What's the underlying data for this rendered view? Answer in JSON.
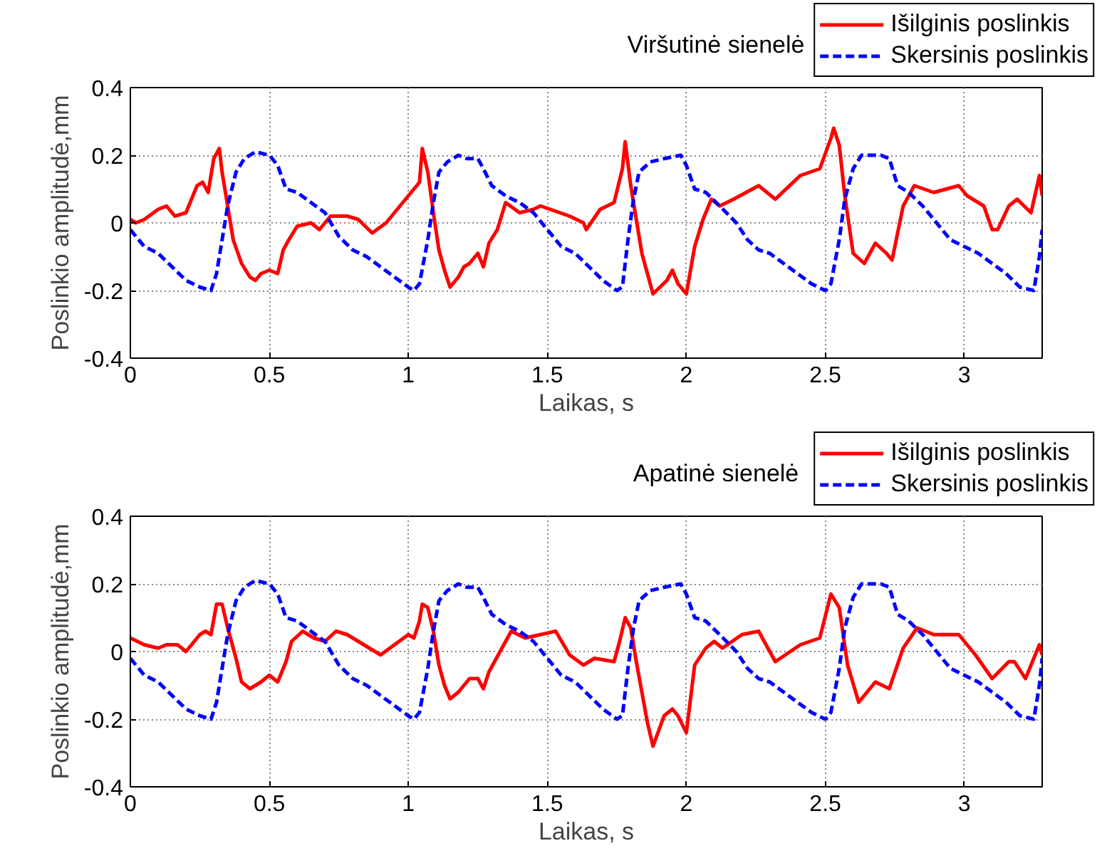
{
  "chart_data": [
    {
      "type": "line",
      "title": "Viršutinė sienelė",
      "xlabel": "Laikas, s",
      "ylabel": "Poslinkio amplitudė,mm",
      "xlim": [
        0,
        3.28
      ],
      "ylim": [
        -0.4,
        0.4
      ],
      "xticks": [
        0,
        0.5,
        1,
        1.5,
        2,
        2.5,
        3
      ],
      "yticks": [
        -0.4,
        -0.2,
        0,
        0.2,
        0.4
      ],
      "grid": true,
      "legend": "top right",
      "series": [
        {
          "name": "Išilginis poslinkis",
          "color": "#ff0000",
          "line_style": "solid",
          "x": [
            0,
            0.02,
            0.05,
            0.1,
            0.13,
            0.16,
            0.2,
            0.22,
            0.24,
            0.26,
            0.28,
            0.3,
            0.32,
            0.33,
            0.35,
            0.37,
            0.4,
            0.43,
            0.45,
            0.47,
            0.5,
            0.53,
            0.55,
            0.57,
            0.6,
            0.65,
            0.68,
            0.72,
            0.78,
            0.82,
            0.87,
            0.92,
            0.97,
            1.0,
            1.02,
            1.04,
            1.05,
            1.07,
            1.09,
            1.11,
            1.13,
            1.15,
            1.18,
            1.2,
            1.22,
            1.25,
            1.27,
            1.29,
            1.32,
            1.35,
            1.4,
            1.45,
            1.475,
            1.58,
            1.63,
            1.64,
            1.69,
            1.74,
            1.77,
            1.78,
            1.8,
            1.84,
            1.88,
            1.93,
            1.95,
            1.97,
            2.0,
            2.03,
            2.06,
            2.09,
            2.12,
            2.17,
            2.26,
            2.32,
            2.41,
            2.48,
            2.52,
            2.53,
            2.55,
            2.57,
            2.6,
            2.64,
            2.68,
            2.72,
            2.74,
            2.78,
            2.82,
            2.89,
            2.98,
            3.01,
            3.07,
            3.1,
            3.12,
            3.16,
            3.19,
            3.24,
            3.27,
            3.28
          ],
          "values": [
            0.01,
            0.0,
            0.01,
            0.04,
            0.05,
            0.02,
            0.03,
            0.07,
            0.11,
            0.12,
            0.09,
            0.19,
            0.22,
            0.15,
            0.05,
            -0.05,
            -0.12,
            -0.16,
            -0.17,
            -0.15,
            -0.14,
            -0.15,
            -0.08,
            -0.05,
            -0.01,
            0.0,
            -0.02,
            0.02,
            0.02,
            0.01,
            -0.03,
            0.0,
            0.05,
            0.08,
            0.1,
            0.12,
            0.22,
            0.15,
            0.03,
            -0.08,
            -0.14,
            -0.19,
            -0.16,
            -0.13,
            -0.12,
            -0.09,
            -0.13,
            -0.06,
            -0.02,
            0.06,
            0.03,
            0.04,
            0.05,
            0.02,
            0.0,
            -0.02,
            0.04,
            0.06,
            0.16,
            0.24,
            0.11,
            -0.09,
            -0.21,
            -0.17,
            -0.14,
            -0.18,
            -0.21,
            -0.07,
            0.01,
            0.07,
            0.05,
            0.07,
            0.11,
            0.07,
            0.14,
            0.16,
            0.25,
            0.28,
            0.23,
            0.08,
            -0.09,
            -0.12,
            -0.06,
            -0.09,
            -0.11,
            0.05,
            0.11,
            0.09,
            0.11,
            0.08,
            0.05,
            -0.02,
            -0.02,
            0.05,
            0.07,
            0.03,
            0.14,
            0.08
          ]
        },
        {
          "name": "Skersinis poslinkis",
          "color": "#0000ff",
          "line_style": "dashed",
          "x": [
            0,
            0.05,
            0.1,
            0.15,
            0.2,
            0.25,
            0.29,
            0.31,
            0.33,
            0.35,
            0.38,
            0.41,
            0.45,
            0.5,
            0.53,
            0.56,
            0.6,
            0.65,
            0.7,
            0.75,
            0.8,
            0.85,
            0.9,
            0.95,
            1.0,
            1.02,
            1.04,
            1.07,
            1.09,
            1.11,
            1.14,
            1.18,
            1.21,
            1.25,
            1.27,
            1.3,
            1.35,
            1.4,
            1.45,
            1.5,
            1.55,
            1.6,
            1.65,
            1.7,
            1.75,
            1.77,
            1.79,
            1.81,
            1.83,
            1.87,
            1.92,
            1.98,
            2.0,
            2.03,
            2.07,
            2.12,
            2.18,
            2.22,
            2.26,
            2.3,
            2.35,
            2.4,
            2.45,
            2.5,
            2.52,
            2.55,
            2.57,
            2.6,
            2.63,
            2.7,
            2.73,
            2.76,
            2.8,
            2.85,
            2.9,
            2.95,
            3.0,
            3.05,
            3.1,
            3.15,
            3.2,
            3.25,
            3.27,
            3.28
          ],
          "values": [
            -0.02,
            -0.07,
            -0.09,
            -0.13,
            -0.17,
            -0.19,
            -0.2,
            -0.15,
            -0.05,
            0.05,
            0.15,
            0.19,
            0.21,
            0.2,
            0.17,
            0.1,
            0.09,
            0.06,
            0.03,
            -0.04,
            -0.08,
            -0.1,
            -0.13,
            -0.16,
            -0.19,
            -0.2,
            -0.18,
            -0.05,
            0.06,
            0.15,
            0.18,
            0.2,
            0.19,
            0.19,
            0.16,
            0.11,
            0.08,
            0.06,
            0.03,
            -0.02,
            -0.07,
            -0.09,
            -0.13,
            -0.17,
            -0.2,
            -0.19,
            -0.05,
            0.07,
            0.15,
            0.18,
            0.19,
            0.2,
            0.17,
            0.1,
            0.09,
            0.05,
            0.0,
            -0.05,
            -0.08,
            -0.09,
            -0.12,
            -0.15,
            -0.18,
            -0.2,
            -0.18,
            -0.05,
            0.07,
            0.16,
            0.2,
            0.2,
            0.19,
            0.11,
            0.09,
            0.05,
            0.0,
            -0.05,
            -0.07,
            -0.09,
            -0.12,
            -0.15,
            -0.19,
            -0.2,
            -0.1,
            -0.02
          ]
        }
      ]
    },
    {
      "type": "line",
      "title": "Apatinė sienelė",
      "xlabel": "Laikas, s",
      "ylabel": "Poslinkio amplitudė,mm",
      "xlim": [
        0,
        3.28
      ],
      "ylim": [
        -0.4,
        0.4
      ],
      "xticks": [
        0,
        0.5,
        1,
        1.5,
        2,
        2.5,
        3
      ],
      "yticks": [
        -0.4,
        -0.2,
        0,
        0.2,
        0.4
      ],
      "grid": true,
      "legend": "top right",
      "series": [
        {
          "name": "Išilginis poslinkis",
          "color": "#ff0000",
          "line_style": "solid",
          "x": [
            0,
            0.05,
            0.1,
            0.13,
            0.17,
            0.2,
            0.22,
            0.25,
            0.27,
            0.29,
            0.31,
            0.33,
            0.35,
            0.38,
            0.4,
            0.43,
            0.47,
            0.5,
            0.53,
            0.56,
            0.58,
            0.62,
            0.66,
            0.7,
            0.74,
            0.78,
            0.84,
            0.9,
            0.95,
            1.0,
            1.02,
            1.04,
            1.05,
            1.07,
            1.09,
            1.11,
            1.13,
            1.15,
            1.18,
            1.22,
            1.25,
            1.27,
            1.29,
            1.33,
            1.37,
            1.42,
            1.475,
            1.53,
            1.58,
            1.63,
            1.67,
            1.74,
            1.76,
            1.78,
            1.8,
            1.82,
            1.86,
            1.88,
            1.92,
            1.95,
            1.97,
            2.0,
            2.03,
            2.07,
            2.1,
            2.13,
            2.2,
            2.26,
            2.32,
            2.41,
            2.48,
            2.52,
            2.55,
            2.58,
            2.62,
            2.68,
            2.73,
            2.78,
            2.83,
            2.89,
            2.98,
            3.04,
            3.1,
            3.16,
            3.18,
            3.22,
            3.27,
            3.28
          ],
          "values": [
            0.04,
            0.02,
            0.01,
            0.02,
            0.02,
            0.0,
            0.02,
            0.05,
            0.06,
            0.05,
            0.14,
            0.14,
            0.07,
            -0.02,
            -0.09,
            -0.11,
            -0.09,
            -0.07,
            -0.09,
            -0.03,
            0.03,
            0.06,
            0.04,
            0.03,
            0.06,
            0.05,
            0.02,
            -0.01,
            0.02,
            0.05,
            0.04,
            0.09,
            0.14,
            0.13,
            0.06,
            -0.04,
            -0.1,
            -0.14,
            -0.12,
            -0.08,
            -0.08,
            -0.11,
            -0.06,
            0.0,
            0.06,
            0.04,
            0.05,
            0.06,
            -0.01,
            -0.04,
            -0.02,
            -0.03,
            0.03,
            0.1,
            0.07,
            -0.03,
            -0.21,
            -0.28,
            -0.19,
            -0.17,
            -0.19,
            -0.24,
            -0.04,
            0.01,
            0.03,
            0.01,
            0.05,
            0.06,
            -0.03,
            0.02,
            0.04,
            0.17,
            0.13,
            -0.04,
            -0.15,
            -0.09,
            -0.11,
            0.01,
            0.07,
            0.05,
            0.05,
            -0.01,
            -0.08,
            -0.03,
            -0.03,
            -0.08,
            0.02,
            -0.01
          ]
        },
        {
          "name": "Skersinis poslinkis",
          "color": "#0000ff",
          "line_style": "dashed",
          "x": [
            0,
            0.05,
            0.1,
            0.15,
            0.2,
            0.25,
            0.29,
            0.31,
            0.33,
            0.35,
            0.38,
            0.41,
            0.45,
            0.5,
            0.53,
            0.56,
            0.6,
            0.65,
            0.7,
            0.75,
            0.8,
            0.85,
            0.9,
            0.95,
            1.0,
            1.02,
            1.04,
            1.07,
            1.09,
            1.11,
            1.14,
            1.18,
            1.21,
            1.25,
            1.27,
            1.3,
            1.35,
            1.4,
            1.45,
            1.5,
            1.55,
            1.6,
            1.65,
            1.7,
            1.75,
            1.77,
            1.79,
            1.81,
            1.83,
            1.87,
            1.92,
            1.98,
            2.0,
            2.03,
            2.07,
            2.12,
            2.18,
            2.22,
            2.26,
            2.3,
            2.35,
            2.4,
            2.45,
            2.5,
            2.52,
            2.55,
            2.57,
            2.6,
            2.63,
            2.7,
            2.73,
            2.76,
            2.8,
            2.85,
            2.9,
            2.95,
            3.0,
            3.05,
            3.1,
            3.15,
            3.2,
            3.25,
            3.27,
            3.28
          ],
          "values": [
            -0.02,
            -0.07,
            -0.09,
            -0.13,
            -0.17,
            -0.19,
            -0.2,
            -0.15,
            -0.05,
            0.05,
            0.15,
            0.19,
            0.21,
            0.2,
            0.17,
            0.1,
            0.09,
            0.06,
            0.03,
            -0.04,
            -0.08,
            -0.1,
            -0.13,
            -0.16,
            -0.19,
            -0.2,
            -0.18,
            -0.05,
            0.06,
            0.15,
            0.18,
            0.2,
            0.19,
            0.19,
            0.16,
            0.11,
            0.08,
            0.06,
            0.03,
            -0.02,
            -0.07,
            -0.09,
            -0.13,
            -0.17,
            -0.2,
            -0.19,
            -0.05,
            0.07,
            0.15,
            0.18,
            0.19,
            0.2,
            0.17,
            0.1,
            0.09,
            0.05,
            0.0,
            -0.05,
            -0.08,
            -0.09,
            -0.12,
            -0.15,
            -0.18,
            -0.2,
            -0.18,
            -0.05,
            0.07,
            0.16,
            0.2,
            0.2,
            0.19,
            0.11,
            0.09,
            0.05,
            0.0,
            -0.05,
            -0.07,
            -0.09,
            -0.12,
            -0.15,
            -0.19,
            -0.2,
            -0.1,
            -0.02
          ]
        }
      ]
    }
  ]
}
